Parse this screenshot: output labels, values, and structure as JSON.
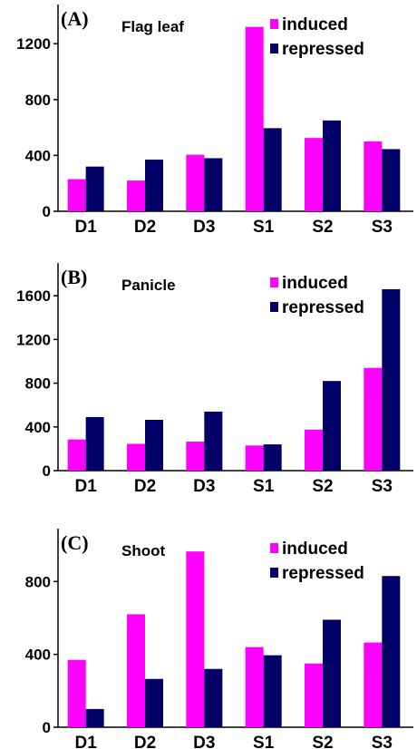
{
  "colors": {
    "induced": "#ff00ff",
    "repressed": "#000066"
  },
  "chart_data": [
    {
      "type": "bar",
      "panel": "(A)",
      "title": "Flag leaf",
      "categories": [
        "D1",
        "D2",
        "D3",
        "S1",
        "S2",
        "S3"
      ],
      "series": [
        {
          "name": "induced",
          "values": [
            230,
            220,
            405,
            1320,
            525,
            500
          ]
        },
        {
          "name": "repressed",
          "values": [
            320,
            370,
            380,
            595,
            650,
            445
          ]
        }
      ],
      "yticks": [
        0,
        400,
        800,
        1200
      ],
      "ylim": [
        0,
        1480
      ],
      "legend": "top-right",
      "grid": false
    },
    {
      "type": "bar",
      "panel": "(B)",
      "title": "Panicle",
      "categories": [
        "D1",
        "D2",
        "D3",
        "S1",
        "S2",
        "S3"
      ],
      "series": [
        {
          "name": "induced",
          "values": [
            285,
            245,
            265,
            230,
            375,
            940
          ]
        },
        {
          "name": "repressed",
          "values": [
            490,
            465,
            540,
            240,
            820,
            1660
          ]
        }
      ],
      "yticks": [
        0,
        400,
        800,
        1200,
        1600
      ],
      "ylim": [
        0,
        1900
      ],
      "legend": "top-right",
      "grid": false
    },
    {
      "type": "bar",
      "panel": "(C)",
      "title": "Shoot",
      "categories": [
        "D1",
        "D2",
        "D3",
        "S1",
        "S2",
        "S3"
      ],
      "series": [
        {
          "name": "induced",
          "values": [
            370,
            620,
            965,
            440,
            350,
            465
          ]
        },
        {
          "name": "repressed",
          "values": [
            100,
            265,
            320,
            395,
            590,
            830
          ]
        }
      ],
      "yticks": [
        0,
        400,
        800
      ],
      "ylim": [
        0,
        1090
      ],
      "legend": "top-right",
      "grid": false
    }
  ]
}
